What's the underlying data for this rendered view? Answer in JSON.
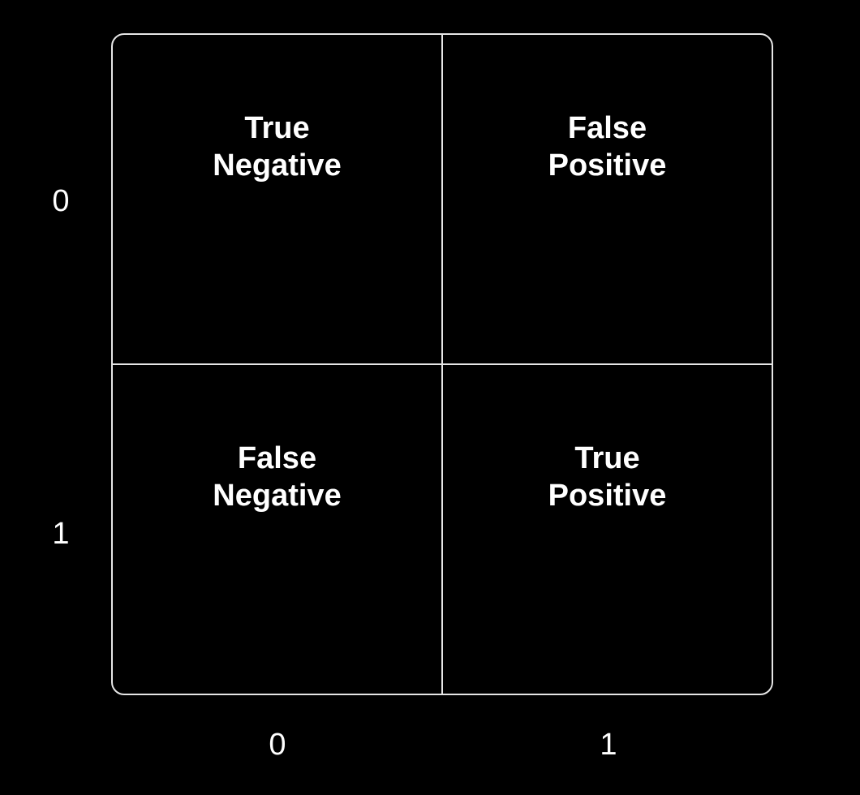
{
  "matrix": {
    "rows": [
      "0",
      "1"
    ],
    "columns": [
      "0",
      "1"
    ],
    "cells": [
      [
        {
          "line1": "True",
          "line2": "Negative"
        },
        {
          "line1": "False",
          "line2": "Positive"
        }
      ],
      [
        {
          "line1": "False",
          "line2": "Negative"
        },
        {
          "line1": "True",
          "line2": "Positive"
        }
      ]
    ]
  },
  "colors": {
    "background": "#000000",
    "foreground": "#ffffff",
    "grid_lines": "#e6e6e6"
  }
}
